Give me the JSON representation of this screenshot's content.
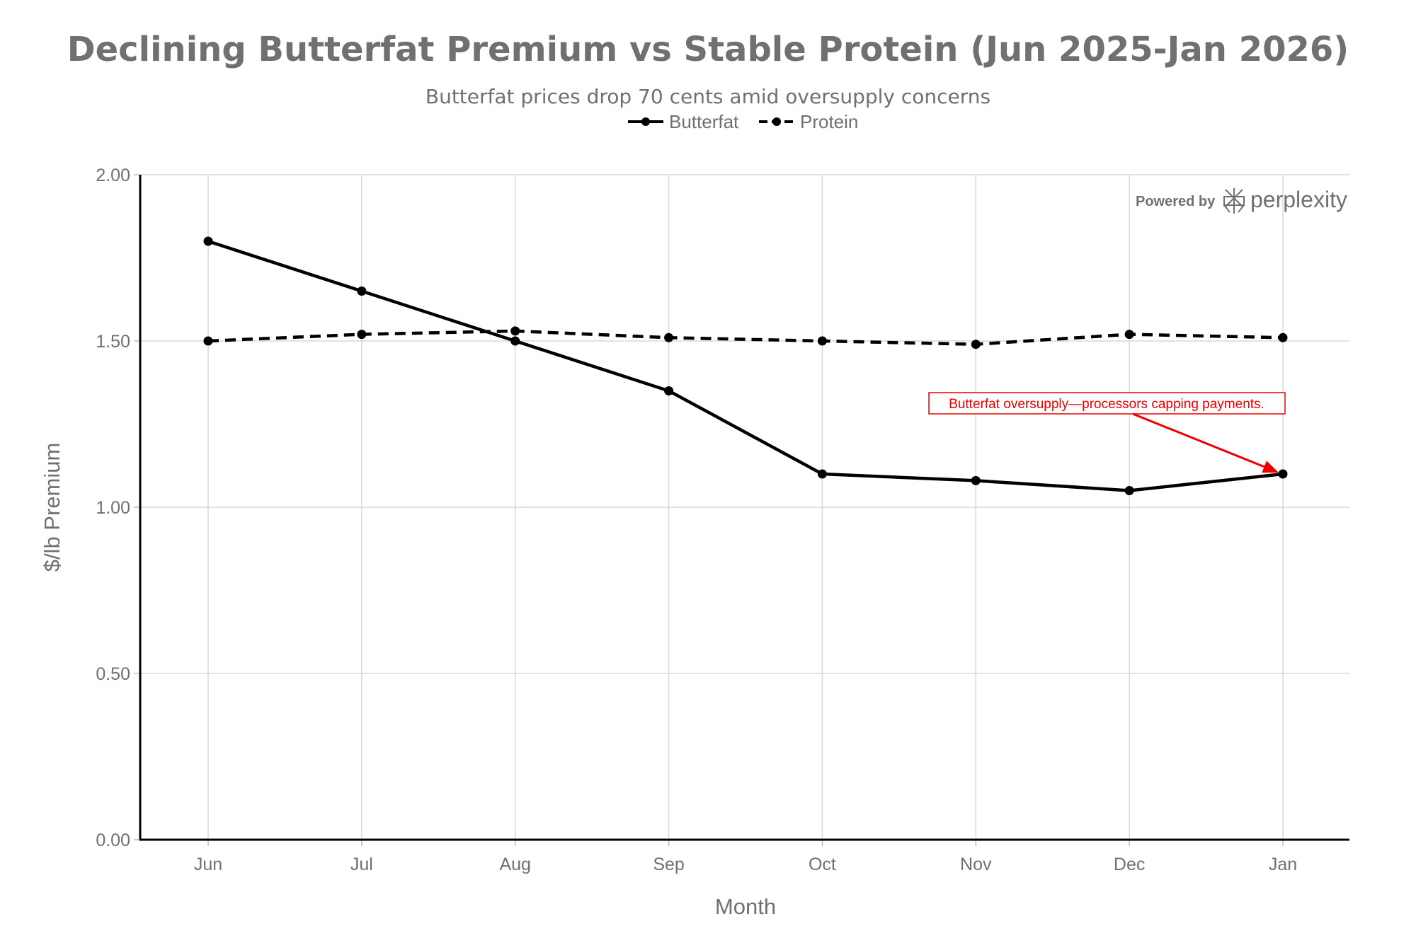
{
  "chart_data": {
    "type": "line",
    "title": "Declining Butterfat Premium vs Stable Protein (Jun 2025-Jan 2026)",
    "subtitle": "Butterfat prices drop 70 cents amid oversupply concerns",
    "xlabel": "Month",
    "ylabel": "$/lb Premium",
    "categories": [
      "Jun",
      "Jul",
      "Aug",
      "Sep",
      "Oct",
      "Nov",
      "Dec",
      "Jan"
    ],
    "ylim": [
      0,
      2
    ],
    "yticks": [
      0,
      0.5,
      1,
      1.5,
      2
    ],
    "ytick_labels": [
      "0.00",
      "0.50",
      "1.00",
      "1.50",
      "2.00"
    ],
    "grid": true,
    "legend_position": "top-center",
    "series": [
      {
        "name": "Butterfat",
        "style": "solid",
        "color": "#000000",
        "values": [
          1.8,
          1.65,
          1.5,
          1.35,
          1.1,
          1.08,
          1.05,
          1.1
        ]
      },
      {
        "name": "Protein",
        "style": "dashed",
        "color": "#000000",
        "values": [
          1.5,
          1.52,
          1.53,
          1.51,
          1.5,
          1.49,
          1.52,
          1.51
        ]
      }
    ],
    "annotations": [
      {
        "text": "Butterfat oversupply—processors capping payments.",
        "target_series": "Butterfat",
        "target_category": "Jan",
        "target_value": 1.1,
        "color": "#ee0000"
      }
    ]
  },
  "branding": {
    "prefix": "Powered by",
    "name": "perplexity"
  }
}
